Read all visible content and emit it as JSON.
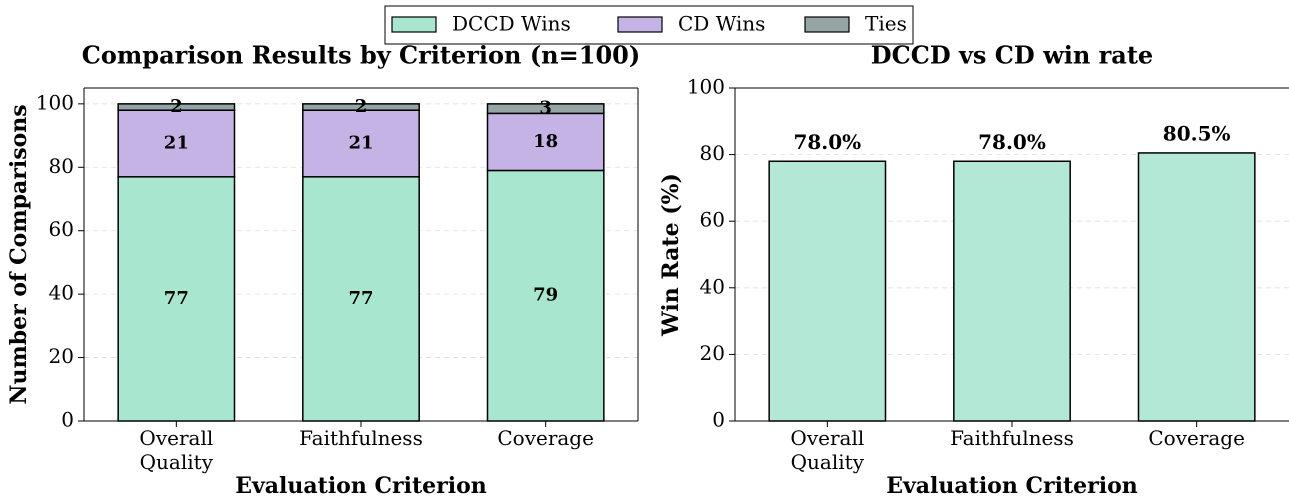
{
  "chart_data": [
    {
      "type": "stacked-bar",
      "title": "Comparison Results by Criterion (n=100)",
      "x_label": "Evaluation Criterion",
      "y_label": "Number of Comparisons",
      "categories": [
        "Overall Quality",
        "Faithfulness",
        "Coverage"
      ],
      "series": [
        {
          "name": "DCCD Wins",
          "color": "#a8e6cf",
          "values": [
            77,
            77,
            79
          ]
        },
        {
          "name": "CD Wins",
          "color": "#c5b3e6",
          "values": [
            21,
            21,
            18
          ]
        },
        {
          "name": "Ties",
          "color": "#95a5a6",
          "values": [
            2,
            2,
            3
          ]
        }
      ],
      "ylim": [
        0,
        105
      ],
      "yticks": [
        0,
        20,
        40,
        60,
        80,
        100
      ],
      "grid": true,
      "legend": "top"
    },
    {
      "type": "bar",
      "title": "DCCD  vs CD win rate",
      "x_label": "Evaluation Criterion",
      "y_label": "Win Rate (%)",
      "categories": [
        "Overall Quality",
        "Faithfulness",
        "Coverage"
      ],
      "values": [
        78,
        78,
        80.5
      ],
      "value_labels": [
        "78.0%",
        "78.0%",
        "80.5%"
      ],
      "color": "#b2e8d5",
      "ylim": [
        0,
        100
      ],
      "yticks": [
        0,
        20,
        40,
        60,
        80,
        100
      ],
      "grid": true
    }
  ]
}
